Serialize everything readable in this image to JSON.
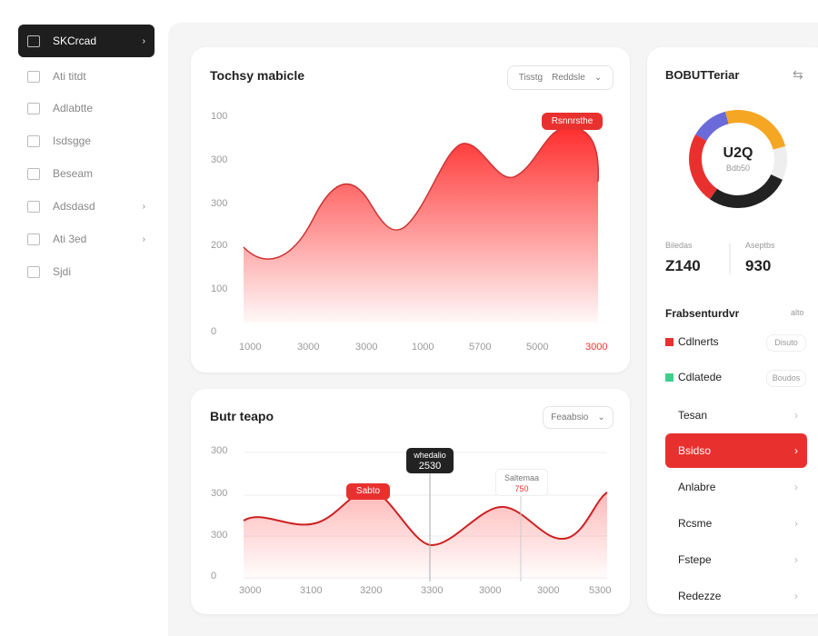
{
  "sidebar": {
    "items": [
      "SKCrcad",
      "Ati titdt",
      "Adlabtte",
      "Isdsgge",
      "Beseam",
      "Adsdasd",
      "Ati 3ed",
      "Sjdi"
    ]
  },
  "main_chart": {
    "title": "Tochsy mabicle",
    "filter": [
      "Tisstg",
      "Reddsle"
    ],
    "badge": "Rsnnrsthe",
    "y_labels": [
      "100",
      "300",
      "300",
      "200",
      "100",
      "0"
    ],
    "x_labels": [
      "1000",
      "3000",
      "3000",
      "1000",
      "5700",
      "5000",
      "3000"
    ]
  },
  "second_chart": {
    "title": "Butr teapo",
    "filter": "Feaabsio",
    "y_labels": [
      "300",
      "300",
      "300",
      "0"
    ],
    "x_labels": [
      "3000",
      "3100",
      "3200",
      "3300",
      "3000",
      "3000",
      "5300"
    ],
    "tooltip_dark": [
      "whedalio",
      "2530"
    ],
    "badge": "Sabto",
    "tooltip_light": [
      "Saltemaa",
      "750"
    ]
  },
  "side_panel": {
    "title": "BOBUTTeriar",
    "donut_value": "U2Q",
    "donut_caption": "Bdb50",
    "stats": [
      {
        "label": "Biledas",
        "value": "Z140"
      },
      {
        "label": "Aseptbs",
        "value": "930"
      }
    ],
    "section_title": "Frabsenturdvr",
    "section_link": "alto",
    "legend": [
      {
        "label": "Cdlnerts",
        "tag": "Disuto"
      },
      {
        "label": "Cdlatede",
        "tag": "Boudos"
      }
    ],
    "list": [
      "Tesan",
      "Bsidso",
      "Anlabre",
      "Rcsme",
      "Fstepe",
      "Redezze"
    ]
  }
}
